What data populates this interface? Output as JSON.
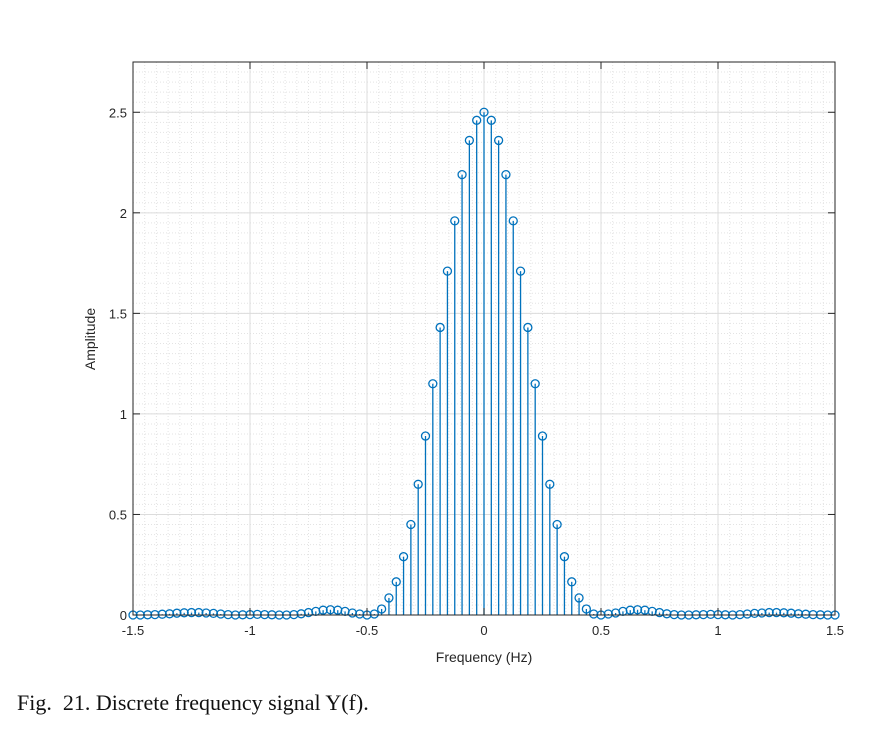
{
  "chart_data": {
    "type": "stem",
    "title": "",
    "xlabel": "Frequency (Hz)",
    "ylabel": "Amplitude",
    "xlim": [
      -1.5,
      1.5
    ],
    "ylim": [
      0,
      2.75
    ],
    "xticks": [
      -1.5,
      -1,
      -0.5,
      0,
      0.5,
      1,
      1.5
    ],
    "xtick_labels": [
      "-1.5",
      "-1",
      "-0.5",
      "0",
      "0.5",
      "1",
      "1.5"
    ],
    "yticks": [
      0,
      0.5,
      1,
      1.5,
      2,
      2.5
    ],
    "ytick_labels": [
      "0",
      "0.5",
      "1",
      "1.5",
      "2",
      "2.5"
    ],
    "grid": true,
    "minor_grid": true,
    "legend": null,
    "marker": "open-circle",
    "color": "#0072BD",
    "x_start": -1.5,
    "x_step": 0.03125,
    "values": [
      0.0,
      0.0,
      0.001,
      0.002,
      0.004,
      0.006,
      0.009,
      0.011,
      0.012,
      0.012,
      0.01,
      0.008,
      0.005,
      0.002,
      0.0,
      0.001,
      0.002,
      0.003,
      0.002,
      0.001,
      0.0,
      0.0,
      0.002,
      0.006,
      0.012,
      0.018,
      0.024,
      0.026,
      0.024,
      0.018,
      0.01,
      0.005,
      0.0,
      0.005,
      0.03,
      0.085,
      0.165,
      0.29,
      0.45,
      0.65,
      0.89,
      1.15,
      1.43,
      1.71,
      1.96,
      2.19,
      2.36,
      2.46,
      2.5,
      2.46,
      2.36,
      2.19,
      1.96,
      1.71,
      1.43,
      1.15,
      0.89,
      0.65,
      0.45,
      0.29,
      0.165,
      0.085,
      0.03,
      0.005,
      0.0,
      0.005,
      0.01,
      0.018,
      0.024,
      0.026,
      0.024,
      0.018,
      0.012,
      0.006,
      0.002,
      0.0,
      0.0,
      0.001,
      0.002,
      0.003,
      0.002,
      0.001,
      0.0,
      0.002,
      0.005,
      0.008,
      0.01,
      0.012,
      0.012,
      0.011,
      0.009,
      0.006,
      0.004,
      0.002,
      0.001,
      0.0,
      0.0
    ]
  },
  "caption": "Fig.  21. Discrete frequency signal Y(f)."
}
